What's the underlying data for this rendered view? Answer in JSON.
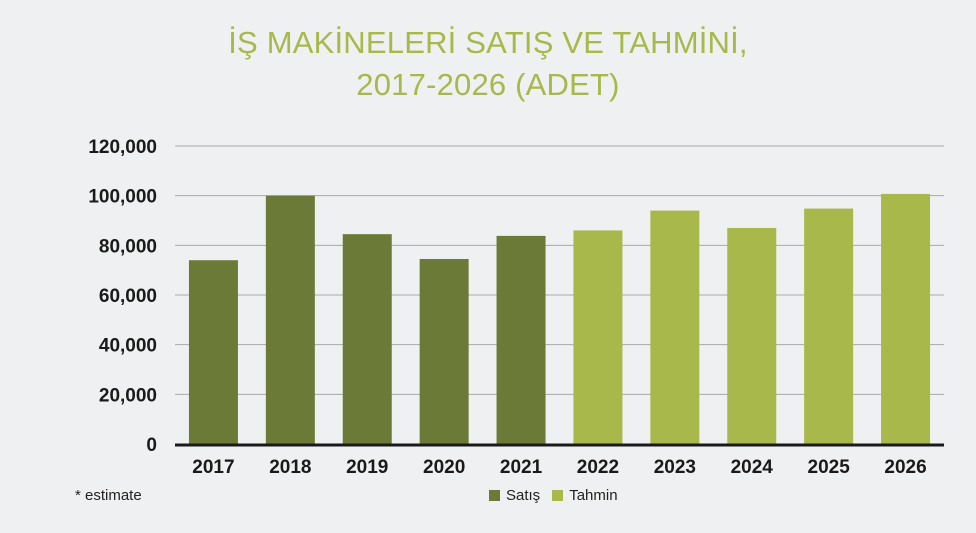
{
  "chart_data": {
    "type": "bar",
    "title_line1": "İŞ MAKİNELERİ SATIŞ VE TAHMİNİ,",
    "title_line2": "2017-2026 (ADET)",
    "categories": [
      "2017",
      "2018",
      "2019",
      "2020",
      "2021",
      "2022",
      "2023",
      "2024",
      "2025",
      "2026"
    ],
    "series": [
      {
        "name": "Satış",
        "color": "#6c7a37",
        "values": [
          74000,
          100000,
          84500,
          74500,
          83800,
          null,
          null,
          null,
          null,
          null
        ]
      },
      {
        "name": "Tahmin",
        "color": "#a8b84a",
        "values": [
          null,
          null,
          null,
          null,
          null,
          86000,
          94000,
          87000,
          94800,
          100700
        ]
      }
    ],
    "ylim": [
      0,
      120000
    ],
    "yticks": [
      0,
      20000,
      40000,
      60000,
      80000,
      100000,
      120000
    ],
    "ytick_labels": [
      "0",
      "20,000",
      "40,000",
      "60,000",
      "80,000",
      "100,000",
      "120,000"
    ],
    "grid": true,
    "legend_position": "bottom-center",
    "footnote": "* estimate"
  }
}
